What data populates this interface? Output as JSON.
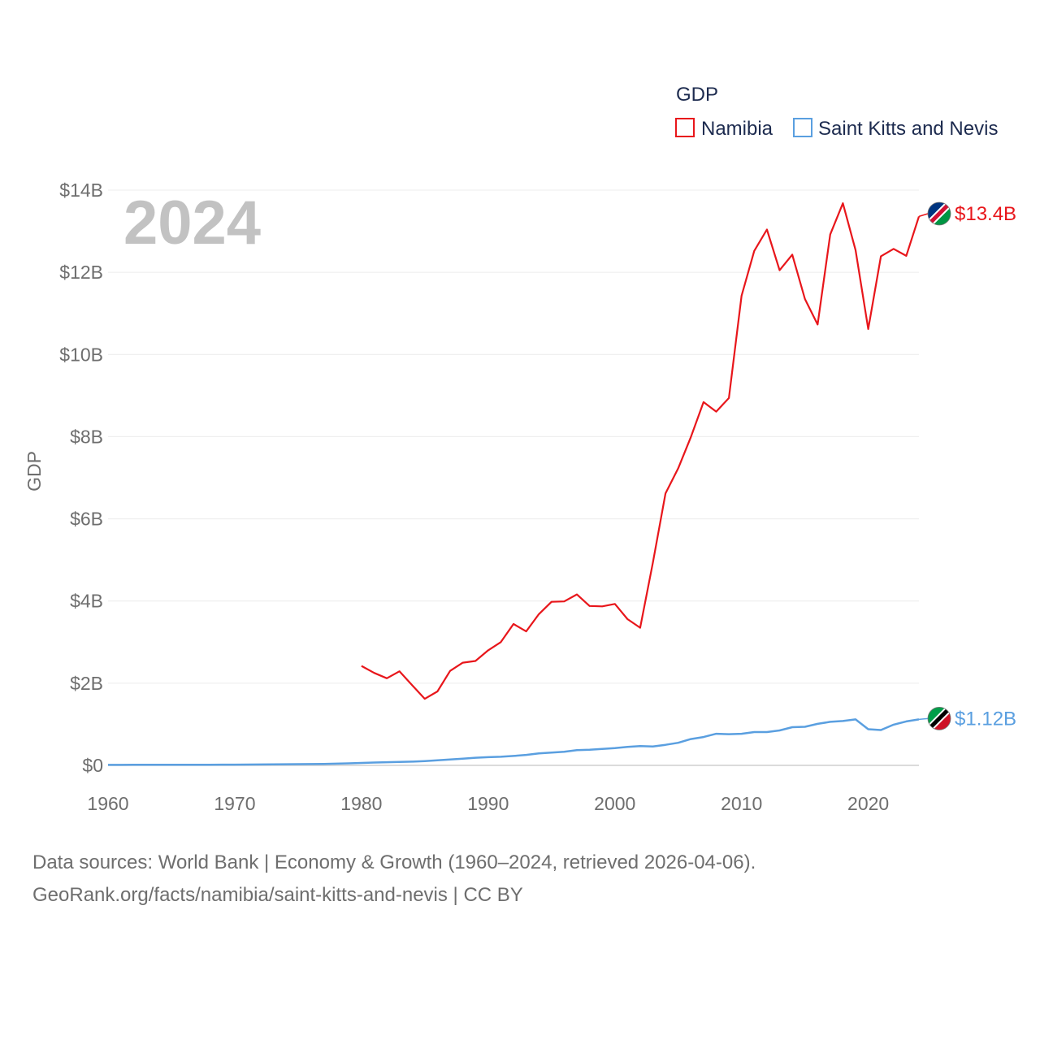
{
  "chart_data": {
    "type": "line",
    "legend_title": "GDP",
    "ylabel": "GDP",
    "year_label": "2024",
    "xlim": [
      1960,
      2024
    ],
    "ylim": [
      0,
      14000000000
    ],
    "x_ticks": [
      {
        "value": 1960,
        "label": "1960"
      },
      {
        "value": 1970,
        "label": "1970"
      },
      {
        "value": 1980,
        "label": "1980"
      },
      {
        "value": 1990,
        "label": "1990"
      },
      {
        "value": 2000,
        "label": "2000"
      },
      {
        "value": 2010,
        "label": "2010"
      },
      {
        "value": 2020,
        "label": "2020"
      }
    ],
    "y_ticks": [
      {
        "value": 0,
        "label": "$0"
      },
      {
        "value": 2000000000,
        "label": "$2B"
      },
      {
        "value": 4000000000,
        "label": "$4B"
      },
      {
        "value": 6000000000,
        "label": "$6B"
      },
      {
        "value": 8000000000,
        "label": "$8B"
      },
      {
        "value": 10000000000,
        "label": "$10B"
      },
      {
        "value": 12000000000,
        "label": "$12B"
      },
      {
        "value": 14000000000,
        "label": "$14B"
      }
    ],
    "series": [
      {
        "name": "Namibia",
        "color": "#e8161b",
        "end_label": "$13.4B",
        "flag_colors": [
          "#003580",
          "#d21034",
          "#009543"
        ],
        "x": [
          1980,
          1981,
          1982,
          1983,
          1984,
          1985,
          1986,
          1987,
          1988,
          1989,
          1990,
          1991,
          1992,
          1993,
          1994,
          1995,
          1996,
          1997,
          1998,
          1999,
          2000,
          2001,
          2002,
          2003,
          2004,
          2005,
          2006,
          2007,
          2008,
          2009,
          2010,
          2011,
          2012,
          2013,
          2014,
          2015,
          2016,
          2017,
          2018,
          2019,
          2020,
          2021,
          2022,
          2023,
          2024
        ],
        "values": [
          2.42,
          2.25,
          2.12,
          2.29,
          1.95,
          1.62,
          1.8,
          2.3,
          2.5,
          2.54,
          2.8,
          3.0,
          3.44,
          3.26,
          3.68,
          3.98,
          3.99,
          4.16,
          3.88,
          3.87,
          3.93,
          3.56,
          3.35,
          4.93,
          6.62,
          7.23,
          7.99,
          8.84,
          8.61,
          8.94,
          11.43,
          12.52,
          13.04,
          12.05,
          12.43,
          11.35,
          10.73,
          12.92,
          13.68,
          12.54,
          10.62,
          12.39,
          12.57,
          12.4,
          13.36
        ],
        "value_unit": 1000000000
      },
      {
        "name": "Saint Kitts and Nevis",
        "color": "#5a9fe0",
        "end_label": "$1.12B",
        "flag_colors": [
          "#009e49",
          "#000000",
          "#ce1126"
        ],
        "x": [
          1960,
          1961,
          1962,
          1963,
          1964,
          1965,
          1966,
          1967,
          1968,
          1969,
          1970,
          1971,
          1972,
          1973,
          1974,
          1975,
          1976,
          1977,
          1978,
          1979,
          1980,
          1981,
          1982,
          1983,
          1984,
          1985,
          1986,
          1987,
          1988,
          1989,
          1990,
          1991,
          1992,
          1993,
          1994,
          1995,
          1996,
          1997,
          1998,
          1999,
          2000,
          2001,
          2002,
          2003,
          2004,
          2005,
          2006,
          2007,
          2008,
          2009,
          2010,
          2011,
          2012,
          2013,
          2014,
          2015,
          2016,
          2017,
          2018,
          2019,
          2020,
          2021,
          2022,
          2023,
          2024
        ],
        "values": [
          0.012,
          0.012,
          0.013,
          0.013,
          0.014,
          0.014,
          0.015,
          0.015,
          0.016,
          0.017,
          0.018,
          0.02,
          0.022,
          0.025,
          0.028,
          0.03,
          0.032,
          0.036,
          0.042,
          0.05,
          0.06,
          0.07,
          0.077,
          0.083,
          0.09,
          0.105,
          0.125,
          0.145,
          0.165,
          0.185,
          0.2,
          0.21,
          0.23,
          0.255,
          0.29,
          0.31,
          0.33,
          0.37,
          0.38,
          0.4,
          0.42,
          0.45,
          0.47,
          0.46,
          0.5,
          0.55,
          0.64,
          0.69,
          0.77,
          0.76,
          0.77,
          0.81,
          0.81,
          0.85,
          0.93,
          0.94,
          1.01,
          1.06,
          1.08,
          1.12,
          0.88,
          0.86,
          0.99,
          1.07,
          1.12
        ],
        "value_unit": 1000000000
      }
    ]
  },
  "footer": {
    "line1": "Data sources: World Bank | Economy & Growth (1960–2024, retrieved 2026-04-06).",
    "line2": "GeoRank.org/facts/namibia/saint-kitts-and-nevis | CC BY"
  }
}
